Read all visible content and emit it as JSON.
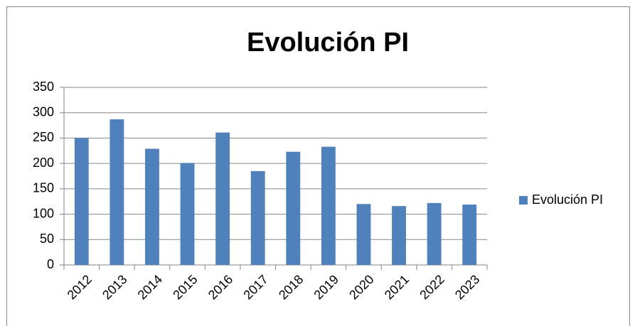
{
  "chart_data": {
    "type": "bar",
    "title": "Evolución PI",
    "categories": [
      "2012",
      "2013",
      "2014",
      "2015",
      "2016",
      "2017",
      "2018",
      "2019",
      "2020",
      "2021",
      "2022",
      "2023"
    ],
    "series": [
      {
        "name": "Evolución PI",
        "color": "#4f81bd",
        "values": [
          250,
          287,
          229,
          201,
          261,
          185,
          223,
          233,
          120,
          116,
          122,
          119
        ]
      }
    ],
    "ylim": [
      0,
      350
    ],
    "yticks": [
      0,
      50,
      100,
      150,
      200,
      250,
      300,
      350
    ],
    "grid": true,
    "legend": "right"
  }
}
